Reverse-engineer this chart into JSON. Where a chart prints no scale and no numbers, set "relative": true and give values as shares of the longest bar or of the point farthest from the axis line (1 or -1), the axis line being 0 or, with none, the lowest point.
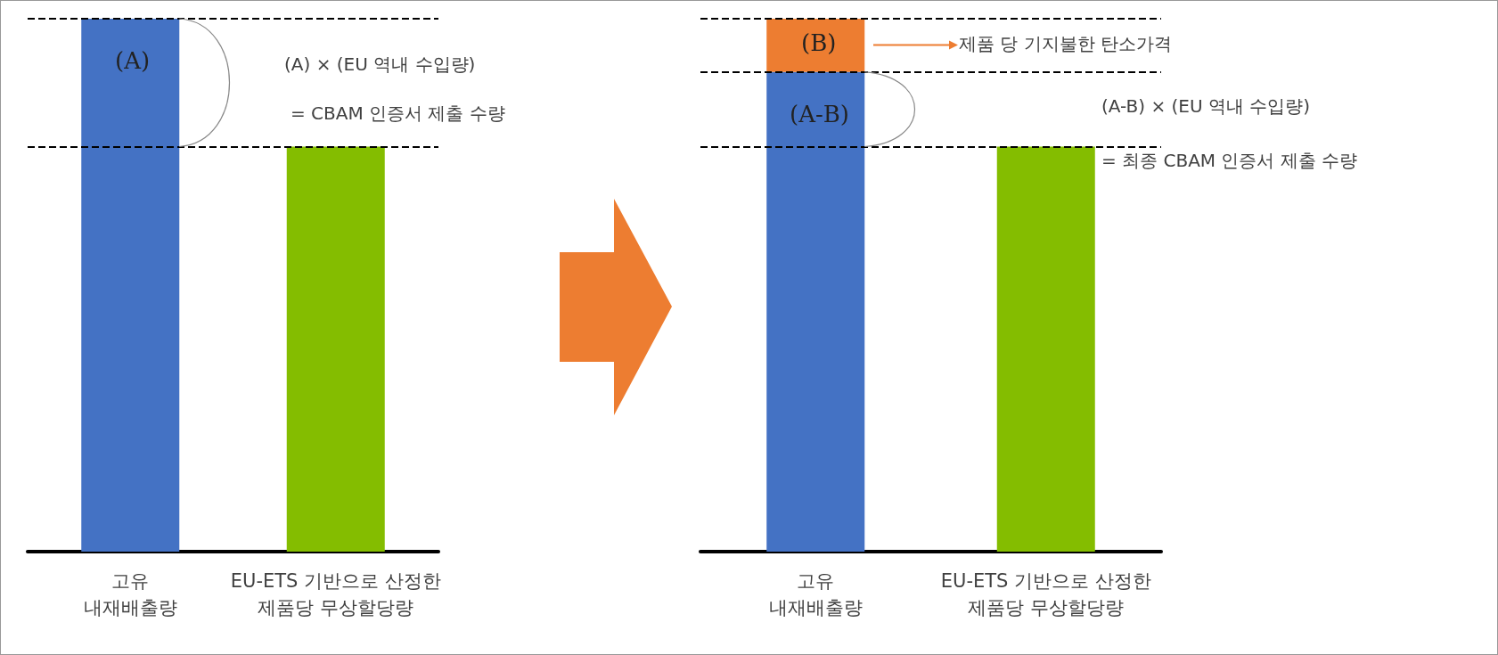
{
  "chart_data": [
    {
      "type": "bar",
      "relative": true,
      "stacked": true,
      "categories": [
        "고유\n내재배출량",
        "EU-ETS 기반으로 산정한\n제품당 무상할당량"
      ],
      "series": [
        {
          "colors": [
            "#4472c4",
            "#84bd00"
          ],
          "values": [
            1,
            0.76
          ]
        }
      ],
      "ref_lines": [
        {
          "axis": "y",
          "value": 1,
          "line_style": "dashed",
          "color": "#000000"
        },
        {
          "axis": "y",
          "value": 0.76,
          "line_style": "dashed",
          "color": "#000000"
        }
      ],
      "annotations": [
        "(A)",
        "(A) × (EU 역내 수입량)",
        "= CBAM 인증서 제출 수량"
      ],
      "grid": false
    },
    {
      "type": "bar",
      "relative": true,
      "stacked": true,
      "categories": [
        "고유\n내재배출량",
        "EU-ETS 기반으로 산정한\n제품당 무상할당량"
      ],
      "series": [
        {
          "colors": [
            "#4472c4",
            "#84bd00"
          ],
          "values": [
            0.9,
            0.76
          ]
        },
        {
          "color": "#ed7d31",
          "values": [
            0.1,
            null
          ]
        }
      ],
      "ref_lines": [
        {
          "axis": "y",
          "value": 1,
          "line_style": "dashed",
          "color": "#000000"
        },
        {
          "axis": "y",
          "value": 0.9,
          "line_style": "dashed",
          "color": "#000000"
        },
        {
          "axis": "y",
          "value": 0.76,
          "line_style": "dashed",
          "color": "#000000"
        }
      ],
      "annotations": [
        "(B)",
        "(A-B)",
        "제품 당 기지불한 탄소가격",
        "(A-B) × (EU 역내 수입량)",
        "= 최종 CBAM 인증서 제출 수량"
      ],
      "grid": false
    }
  ]
}
